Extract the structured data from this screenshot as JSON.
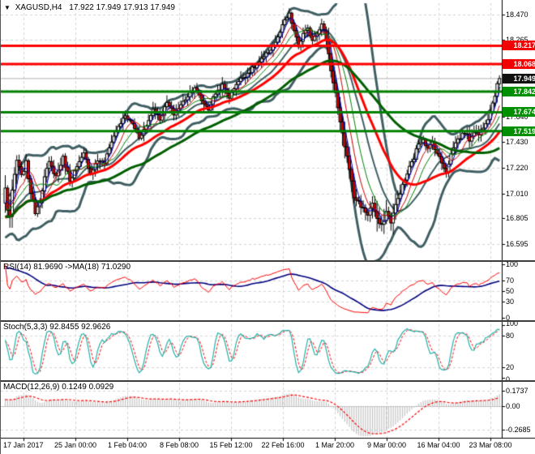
{
  "header": {
    "symbol_period": "XAGUSD,H4",
    "ohlc": "17.922 17.949 17.913 17.949"
  },
  "panels": {
    "rsi": {
      "label": "RSI(14) 81.9690  ->MA(18) 71.0290",
      "ticks": [
        {
          "label": "100",
          "value": 100
        },
        {
          "label": "70",
          "value": 70
        },
        {
          "label": "50",
          "value": 50
        },
        {
          "label": "30",
          "value": 30
        },
        {
          "label": "0",
          "value": 0
        }
      ],
      "guides": [
        70,
        50,
        30
      ]
    },
    "stoch": {
      "label": "Stoch(5,3,3) 92.8455 92.9626",
      "ticks": [
        {
          "label": "100",
          "value": 100
        },
        {
          "label": "80",
          "value": 80
        },
        {
          "label": "20",
          "value": 20
        },
        {
          "label": "0",
          "value": 0
        }
      ],
      "guides": [
        80,
        20
      ]
    },
    "macd": {
      "label": "MACD(12,26,9) 0.1249 0.0929",
      "ticks": [
        {
          "label": "0.1737",
          "value": 0.1737
        },
        {
          "label": "0.00",
          "value": 0
        },
        {
          "label": "-0.2685",
          "value": -0.2685
        }
      ],
      "guides": [
        0.1737,
        -0.2685
      ]
    }
  },
  "price_axis": {
    "ticks": [
      {
        "label": "18.470",
        "value": 18.47
      },
      {
        "label": "18.265",
        "value": 18.265
      },
      {
        "label": "18.060",
        "value": 18.06
      },
      {
        "label": "17.855",
        "value": 17.855
      },
      {
        "label": "17.640",
        "value": 17.64
      },
      {
        "label": "17.430",
        "value": 17.43
      },
      {
        "label": "17.220",
        "value": 17.22
      },
      {
        "label": "17.010",
        "value": 17.01
      },
      {
        "label": "16.805",
        "value": 16.805
      },
      {
        "label": "16.595",
        "value": 16.595
      }
    ],
    "tags": [
      {
        "label": "18.217",
        "value": 18.217,
        "type": "resistance"
      },
      {
        "label": "18.068",
        "value": 18.068,
        "type": "resistance"
      },
      {
        "label": "17.949",
        "value": 17.949,
        "type": "current"
      },
      {
        "label": "17.842",
        "value": 17.842,
        "type": "support"
      },
      {
        "label": "17.674",
        "value": 17.674,
        "type": "support"
      },
      {
        "label": "17.519",
        "value": 17.519,
        "type": "support"
      }
    ]
  },
  "time_axis": {
    "labels": [
      "17 Jan 2017",
      "25 Jan 00:00",
      "1 Feb 04:00",
      "8 Feb 08:00",
      "15 Feb 12:00",
      "22 Feb 16:00",
      "1 Mar 20:00",
      "9 Mar 00:00",
      "16 Mar 04:00",
      "23 Mar 08:00"
    ]
  },
  "colors": {
    "background": "#ffffff",
    "grid": "#d4d4d4",
    "resistance_line": "#ff0000",
    "support_line": "#008000",
    "current_price_line": "#b0b0b0",
    "tag_resistance": "#f40000",
    "tag_support": "#008f00",
    "tag_current": "#111111",
    "bollinger": "#405f63",
    "ma_fast_blue": "#0000cc",
    "ma_fast_red": "#cc0000",
    "ma_fast_green": "#008000",
    "ma_slow_red": "#ff0000",
    "ma_slow_green": "#005f00",
    "candle_outline": "#000000",
    "candle_bull": "#ffffff",
    "candle_bear": "#e60000",
    "rsi_line": "#ff0000",
    "rsi_ma_line": "#000080",
    "stoch_line": "#20b2aa",
    "stoch_signal": "#ff0000",
    "macd_hist": "#c4c4c4",
    "macd_signal": "#ff0000"
  },
  "chart_data": {
    "type": "candlestick",
    "title": "XAGUSD,H4",
    "ohlc_display": {
      "open": 17.922,
      "high": 17.949,
      "low": 17.913,
      "close": 17.949
    },
    "x_tick_labels": [
      "17 Jan 2017",
      "25 Jan 00:00",
      "1 Feb 04:00",
      "8 Feb 08:00",
      "15 Feb 12:00",
      "22 Feb 16:00",
      "1 Mar 20:00",
      "9 Mar 00:00",
      "16 Mar 04:00",
      "23 Mar 08:00"
    ],
    "y_tick_values": [
      18.47,
      18.265,
      18.06,
      17.855,
      17.64,
      17.43,
      17.22,
      17.01,
      16.805,
      16.595
    ],
    "y_range_displayed": [
      16.47,
      18.565
    ],
    "candle_count": 215,
    "close_price_keyframes": [
      [
        0,
        17.05
      ],
      [
        1,
        16.88
      ],
      [
        2,
        16.82
      ],
      [
        3,
        17.02
      ],
      [
        4,
        17.16
      ],
      [
        5,
        17.28
      ],
      [
        7,
        17.15
      ],
      [
        9,
        17.26
      ],
      [
        11,
        17.02
      ],
      [
        13,
        16.86
      ],
      [
        15,
        16.95
      ],
      [
        17,
        17.14
      ],
      [
        19,
        17.26
      ],
      [
        22,
        17.15
      ],
      [
        25,
        17.3
      ],
      [
        28,
        17.12
      ],
      [
        31,
        17.22
      ],
      [
        34,
        17.33
      ],
      [
        37,
        17.18
      ],
      [
        40,
        17.28
      ],
      [
        43,
        17.26
      ],
      [
        46,
        17.44
      ],
      [
        49,
        17.56
      ],
      [
        52,
        17.64
      ],
      [
        55,
        17.58
      ],
      [
        58,
        17.47
      ],
      [
        61,
        17.56
      ],
      [
        64,
        17.7
      ],
      [
        67,
        17.62
      ],
      [
        70,
        17.75
      ],
      [
        73,
        17.66
      ],
      [
        76,
        17.73
      ],
      [
        79,
        17.81
      ],
      [
        82,
        17.88
      ],
      [
        85,
        17.77
      ],
      [
        88,
        17.7
      ],
      [
        91,
        17.83
      ],
      [
        94,
        17.89
      ],
      [
        97,
        17.8
      ],
      [
        100,
        17.91
      ],
      [
        103,
        17.96
      ],
      [
        106,
        18.01
      ],
      [
        109,
        18.06
      ],
      [
        112,
        18.12
      ],
      [
        115,
        18.19
      ],
      [
        118,
        18.28
      ],
      [
        121,
        18.42
      ],
      [
        123,
        18.47
      ],
      [
        125,
        18.34
      ],
      [
        127,
        18.21
      ],
      [
        129,
        18.31
      ],
      [
        131,
        18.35
      ],
      [
        133,
        18.27
      ],
      [
        135,
        18.33
      ],
      [
        137,
        18.39
      ],
      [
        139,
        18.28
      ],
      [
        141,
        18.02
      ],
      [
        143,
        17.83
      ],
      [
        145,
        17.58
      ],
      [
        147,
        17.4
      ],
      [
        149,
        17.22
      ],
      [
        151,
        16.98
      ],
      [
        153,
        16.94
      ],
      [
        155,
        16.88
      ],
      [
        157,
        16.84
      ],
      [
        159,
        16.93
      ],
      [
        161,
        16.79
      ],
      [
        163,
        16.74
      ],
      [
        165,
        16.86
      ],
      [
        167,
        16.78
      ],
      [
        169,
        16.91
      ],
      [
        171,
        17.02
      ],
      [
        173,
        17.12
      ],
      [
        175,
        17.22
      ],
      [
        177,
        17.3
      ],
      [
        179,
        17.42
      ],
      [
        181,
        17.46
      ],
      [
        183,
        17.37
      ],
      [
        185,
        17.43
      ],
      [
        187,
        17.34
      ],
      [
        189,
        17.26
      ],
      [
        191,
        17.19
      ],
      [
        193,
        17.33
      ],
      [
        195,
        17.43
      ],
      [
        197,
        17.47
      ],
      [
        199,
        17.51
      ],
      [
        201,
        17.45
      ],
      [
        203,
        17.52
      ],
      [
        205,
        17.49
      ],
      [
        207,
        17.56
      ],
      [
        209,
        17.63
      ],
      [
        211,
        17.75
      ],
      [
        213,
        17.89
      ],
      [
        214,
        17.949
      ]
    ],
    "overlays": {
      "bollinger": {
        "period": 20,
        "deviation": 2
      },
      "ma_ribbon_periods": [
        4,
        8,
        13
      ],
      "ma_slow": [
        {
          "period": 45
        },
        {
          "period": 90
        }
      ]
    },
    "levels": {
      "resistance": [
        18.217,
        18.068
      ],
      "support": [
        17.842,
        17.674,
        17.519
      ],
      "current_price": 17.949
    },
    "indicators": [
      {
        "name": "RSI",
        "params": [
          14
        ],
        "value": 81.969,
        "ma_period": 18,
        "ma_value": 71.029,
        "range": [
          0,
          100
        ],
        "guides": [
          70,
          50,
          30
        ]
      },
      {
        "name": "Stochastic",
        "params": [
          5,
          3,
          3
        ],
        "values": [
          92.8455,
          92.9626
        ],
        "range": [
          0,
          100
        ],
        "guides": [
          80,
          20
        ]
      },
      {
        "name": "MACD",
        "params": [
          12,
          26,
          9
        ],
        "values": [
          0.1249,
          0.0929
        ],
        "axis_ticks": [
          0.1737,
          0.0,
          -0.2685
        ]
      }
    ]
  }
}
